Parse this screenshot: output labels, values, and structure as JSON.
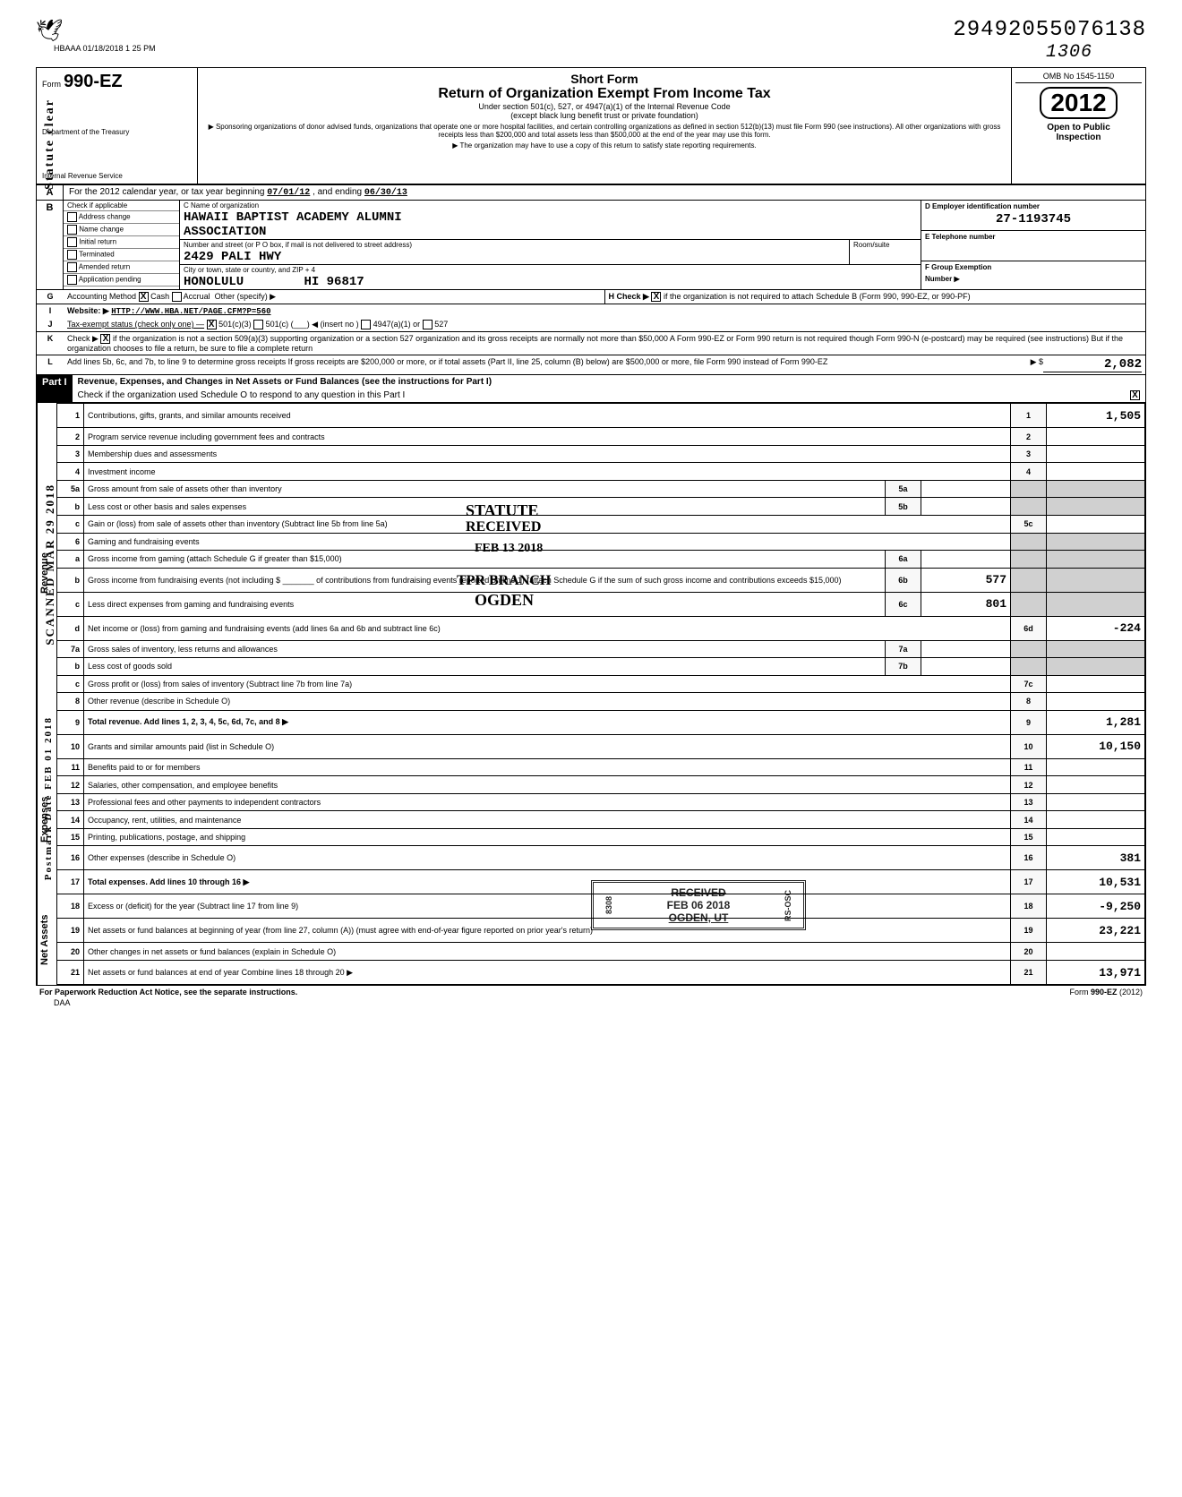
{
  "timestamp_header": "HBAAA 01/18/2018 1 25 PM",
  "stamp_code": "29492055076138",
  "stamp_code_sub": "1306",
  "form": {
    "number": "990-EZ",
    "prefix": "Form",
    "short_form": "Short Form",
    "title": "Return of Organization Exempt From Income Tax",
    "subtitle1": "Under section 501(c), 527, or 4947(a)(1) of the Internal Revenue Code",
    "subtitle2": "(except black lung benefit trust or private foundation)",
    "note1": "▶ Sponsoring organizations of donor advised funds, organizations that operate one or more hospital facilities, and certain controlling organizations as defined in section 512(b)(13) must file Form 990 (see instructions). All other organizations with gross receipts less than $200,000 and total assets less than $500,000 at the end of the year may use this form.",
    "note2": "▶ The organization may have to use a copy of this return to satisfy state reporting requirements.",
    "dept1": "Department of the Treasury",
    "dept2": "Internal Revenue Service",
    "omb": "OMB No 1545-1150",
    "year": "2012",
    "open_public": "Open to Public",
    "inspection": "Inspection"
  },
  "line_a": {
    "text": "For the 2012 calendar year, or tax year beginning",
    "begin": "07/01/12",
    "mid": ", and ending",
    "end": "06/30/13"
  },
  "section_b": {
    "check_label": "Check if applicable",
    "checks": [
      "Address change",
      "Name change",
      "Initial return",
      "Terminated",
      "Amended return",
      "Application pending"
    ],
    "c_label": "C Name of organization",
    "org_name1": "HAWAII BAPTIST ACADEMY ALUMNI",
    "org_name2": "ASSOCIATION",
    "addr_label": "Number and street (or P O box, if mail is not delivered to street address)",
    "street": "2429 PALI HWY",
    "city_label": "City or town, state or country, and ZIP + 4",
    "city": "HONOLULU",
    "state_zip": "HI 96817",
    "room_label": "Room/suite",
    "d_label": "D Employer identification number",
    "ein": "27-1193745",
    "e_label": "E Telephone number",
    "f_label": "F Group Exemption",
    "f_label2": "Number ▶"
  },
  "line_g": {
    "label": "Accounting Method",
    "cash": "Cash",
    "accrual": "Accrual",
    "other": "Other (specify) ▶",
    "h_label": "H Check ▶",
    "h_text": "if the organization is not required to attach Schedule B (Form 990, 990-EZ, or 990-PF)"
  },
  "line_i": {
    "label": "Website: ▶",
    "url": "HTTP://WWW.HBA.NET/PAGE.CFM?P=560"
  },
  "line_j": {
    "label": "Tax-exempt status (check only one) —",
    "opt1": "501(c)(3)",
    "opt2": "501(c) (",
    "opt2b": ") ◀ (insert no )",
    "opt3": "4947(a)(1) or",
    "opt4": "527"
  },
  "line_k": {
    "text": "Check ▶",
    "body": "if the organization is not a section 509(a)(3) supporting organization or a section 527 organization and its gross receipts are normally not more than $50,000 A Form 990-EZ or Form 990 return is not required though Form 990-N (e-postcard) may be required (see instructions) But if the organization chooses to file a return, be sure to file a complete return"
  },
  "line_l": {
    "text": "Add lines 5b, 6c, and 7b, to line 9 to determine gross receipts If gross receipts are $200,000 or more, or if total assets (Part II, line 25, column (B) below) are $500,000 or more, file Form 990 instead of Form 990-EZ",
    "arrow": "▶ $",
    "amount": "2,082"
  },
  "part1": {
    "label": "Part I",
    "title": "Revenue, Expenses, and Changes in Net Assets or Fund Balances (see the instructions for Part I)",
    "check_text": "Check if the organization used Schedule O to respond to any question in this Part I",
    "checked": "X"
  },
  "sections": {
    "revenue": "Revenue",
    "expenses": "Expenses",
    "netassets": "Net Assets"
  },
  "lines": [
    {
      "n": "1",
      "desc": "Contributions, gifts, grants, and similar amounts received",
      "box": "1",
      "amt": "1,505"
    },
    {
      "n": "2",
      "desc": "Program service revenue including government fees and contracts",
      "box": "2",
      "amt": ""
    },
    {
      "n": "3",
      "desc": "Membership dues and assessments",
      "box": "3",
      "amt": ""
    },
    {
      "n": "4",
      "desc": "Investment income",
      "box": "4",
      "amt": ""
    },
    {
      "n": "5a",
      "desc": "Gross amount from sale of assets other than inventory",
      "mid": "5a",
      "midamt": ""
    },
    {
      "n": "b",
      "desc": "Less cost or other basis and sales expenses",
      "mid": "5b",
      "midamt": ""
    },
    {
      "n": "c",
      "desc": "Gain or (loss) from sale of assets other than inventory (Subtract line 5b from line 5a)",
      "box": "5c",
      "amt": ""
    },
    {
      "n": "6",
      "desc": "Gaming and fundraising events"
    },
    {
      "n": "a",
      "desc": "Gross income from gaming (attach Schedule G if greater than $15,000)",
      "mid": "6a",
      "midamt": ""
    },
    {
      "n": "b",
      "desc": "Gross income from fundraising events (not including $ _______ of contributions from fundraising events reported on line 1) (attach Schedule G if the sum of such gross income and contributions exceeds $15,000)",
      "mid": "6b",
      "midamt": "577"
    },
    {
      "n": "c",
      "desc": "Less direct expenses from gaming and fundraising events",
      "mid": "6c",
      "midamt": "801"
    },
    {
      "n": "d",
      "desc": "Net income or (loss) from gaming and fundraising events (add lines 6a and 6b and subtract line 6c)",
      "box": "6d",
      "amt": "-224"
    },
    {
      "n": "7a",
      "desc": "Gross sales of inventory, less returns and allowances",
      "mid": "7a",
      "midamt": ""
    },
    {
      "n": "b",
      "desc": "Less cost of goods sold",
      "mid": "7b",
      "midamt": ""
    },
    {
      "n": "c",
      "desc": "Gross profit or (loss) from sales of inventory (Subtract line 7b from line 7a)",
      "box": "7c",
      "amt": ""
    },
    {
      "n": "8",
      "desc": "Other revenue (describe in Schedule O)",
      "box": "8",
      "amt": ""
    },
    {
      "n": "9",
      "desc": "Total revenue. Add lines 1, 2, 3, 4, 5c, 6d, 7c, and 8",
      "box": "9",
      "amt": "1,281",
      "bold": true,
      "arrow": true
    },
    {
      "n": "10",
      "desc": "Grants and similar amounts paid (list in Schedule O)",
      "box": "10",
      "amt": "10,150"
    },
    {
      "n": "11",
      "desc": "Benefits paid to or for members",
      "box": "11",
      "amt": ""
    },
    {
      "n": "12",
      "desc": "Salaries, other compensation, and employee benefits",
      "box": "12",
      "amt": ""
    },
    {
      "n": "13",
      "desc": "Professional fees and other payments to independent contractors",
      "box": "13",
      "amt": ""
    },
    {
      "n": "14",
      "desc": "Occupancy, rent, utilities, and maintenance",
      "box": "14",
      "amt": ""
    },
    {
      "n": "15",
      "desc": "Printing, publications, postage, and shipping",
      "box": "15",
      "amt": ""
    },
    {
      "n": "16",
      "desc": "Other expenses (describe in Schedule O)",
      "box": "16",
      "amt": "381"
    },
    {
      "n": "17",
      "desc": "Total expenses. Add lines 10 through 16",
      "box": "17",
      "amt": "10,531",
      "bold": true,
      "arrow": true
    },
    {
      "n": "18",
      "desc": "Excess or (deficit) for the year (Subtract line 17 from line 9)",
      "box": "18",
      "amt": "-9,250"
    },
    {
      "n": "19",
      "desc": "Net assets or fund balances at beginning of year (from line 27, column (A)) (must agree with end-of-year figure reported on prior year's return)",
      "box": "19",
      "amt": "23,221"
    },
    {
      "n": "20",
      "desc": "Other changes in net assets or fund balances (explain in Schedule O)",
      "box": "20",
      "amt": ""
    },
    {
      "n": "21",
      "desc": "Net assets or fund balances at end of year Combine lines 18 through 20",
      "box": "21",
      "amt": "13,971",
      "arrow": true
    }
  ],
  "footer": {
    "left": "For Paperwork Reduction Act Notice, see the separate instructions.",
    "daa": "DAA",
    "right": "Form 990-EZ (2012)"
  },
  "stamps": {
    "statute_clear": "Statute clear",
    "scanned": "SCANNED MAR 29 2018",
    "postmark": "Postmark Date FEB 01 2018",
    "overlay_statute": "STATUTE",
    "overlay_received": "RECEIVED",
    "overlay_date": "FEB 13 2018",
    "overlay_branch": "TPR BRANCH",
    "overlay_ogden": "OGDEN",
    "received2": "RECEIVED",
    "received2_date": "FEB 06 2018",
    "received2_loc": "OGDEN, UT",
    "received2_side1": "8308",
    "received2_side2": "RS-OSC"
  }
}
